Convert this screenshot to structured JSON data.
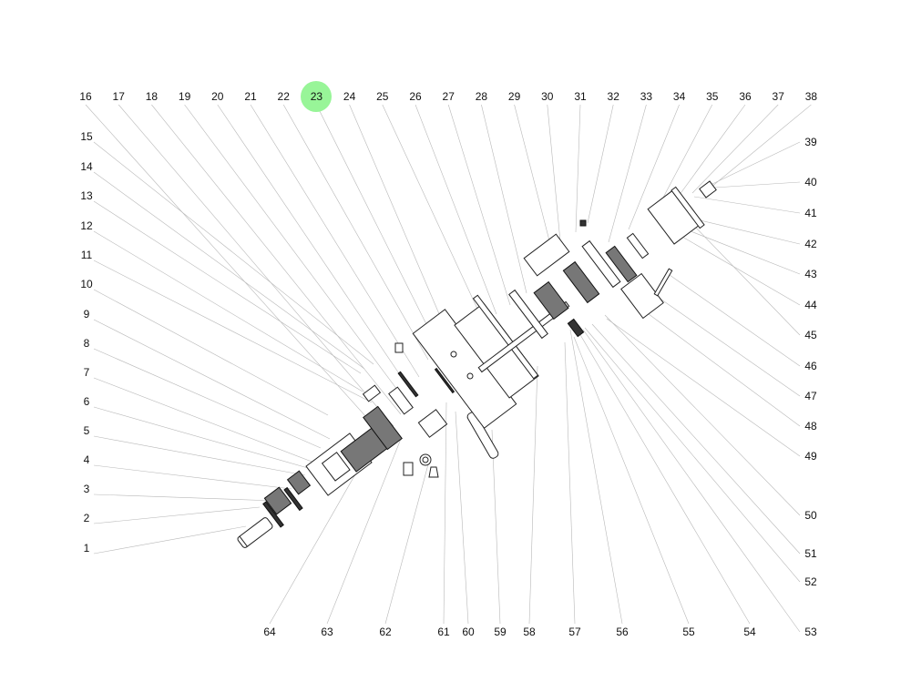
{
  "diagram": {
    "highlight_color": "#98f598",
    "selected_label": "23",
    "labels": {
      "top": [
        "16",
        "17",
        "18",
        "19",
        "20",
        "21",
        "22",
        "23",
        "24",
        "25",
        "26",
        "27",
        "28",
        "29",
        "30",
        "31",
        "32",
        "33",
        "34",
        "35",
        "36",
        "37",
        "38"
      ],
      "left": [
        "15",
        "14",
        "13",
        "12",
        "11",
        "10",
        "9",
        "8",
        "7",
        "6",
        "5",
        "4",
        "3",
        "2",
        "1"
      ],
      "right": [
        "39",
        "40",
        "41",
        "42",
        "43",
        "44",
        "45",
        "46",
        "47",
        "48",
        "49",
        "50",
        "51",
        "52",
        "53"
      ],
      "bottom": [
        "64",
        "63",
        "62",
        "61",
        "60",
        "59",
        "58",
        "57",
        "56",
        "55",
        "54"
      ]
    }
  }
}
